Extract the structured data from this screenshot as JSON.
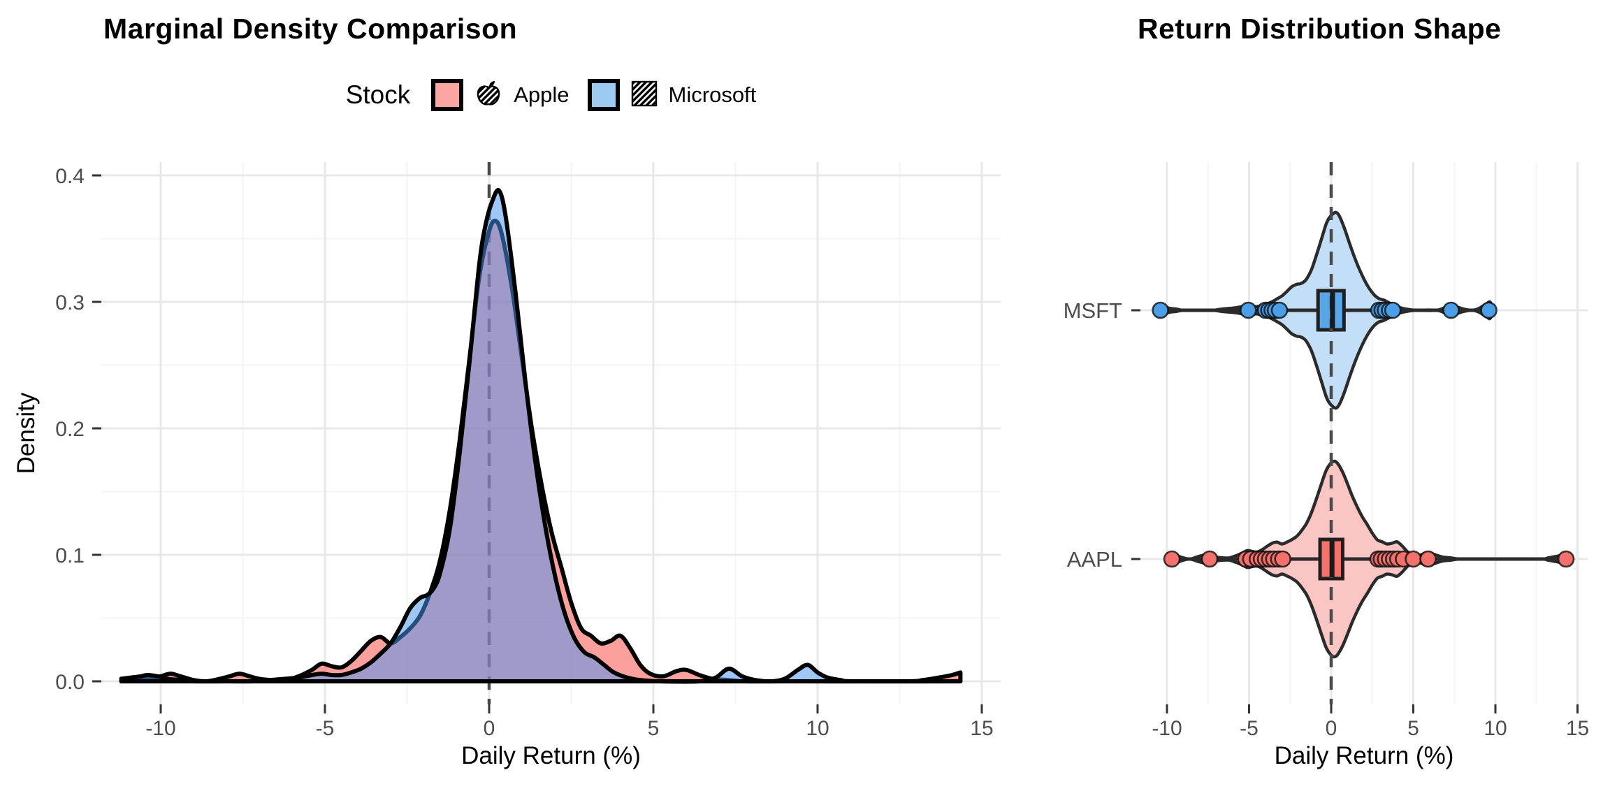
{
  "header": {
    "left_title": "Marginal Density Comparison",
    "right_title": "Return Distribution Shape"
  },
  "legend": {
    "title": "Stock",
    "items": [
      {
        "label": "Apple",
        "swatch": "#FCA5A2",
        "icon": "apple-icon"
      },
      {
        "label": "Microsoft",
        "swatch": "#9CCBF2",
        "icon": "striped-square-icon"
      }
    ]
  },
  "axes": {
    "left": {
      "xlabel": "Daily Return (%)",
      "ylabel": "Density"
    },
    "right": {
      "xlabel": "Daily Return (%)"
    }
  },
  "colors": {
    "grid_major": "#E8E8E8",
    "grid_minor": "#F4F4F4",
    "tick_text": "#4D4D4D",
    "tick_mark": "#333333",
    "dash_line": "#4A4A4A",
    "density_outline": "#000000"
  },
  "chart_data": [
    {
      "type": "area",
      "variant": "overlaid-density",
      "title": "Marginal Density Comparison",
      "xlabel": "Daily Return (%)",
      "ylabel": "Density",
      "xlim": [
        -11.8,
        15.55
      ],
      "ylim": [
        0,
        0.41
      ],
      "x_ticks": [
        -10,
        -5,
        0,
        5,
        10,
        15
      ],
      "x_minor": [
        -7.5,
        -2.5,
        2.5,
        7.5,
        12.5
      ],
      "y_ticks": [
        0.0,
        0.1,
        0.2,
        0.3,
        0.4
      ],
      "y_minor": [
        0.05,
        0.15,
        0.25,
        0.35
      ],
      "zero_vline": 0,
      "legend_position": "top",
      "series": [
        {
          "name": "Apple",
          "ticker": "AAPL",
          "fill": "rgba(250,82,78,0.55)",
          "points": [
            [
              -11.2,
              0.0
            ],
            [
              -10.8,
              0.001
            ],
            [
              -10.4,
              0.002
            ],
            [
              -10.0,
              0.004
            ],
            [
              -9.7,
              0.006
            ],
            [
              -9.4,
              0.004
            ],
            [
              -9.0,
              0.001
            ],
            [
              -8.6,
              0.0
            ],
            [
              -8.2,
              0.002
            ],
            [
              -7.9,
              0.004
            ],
            [
              -7.6,
              0.006
            ],
            [
              -7.3,
              0.004
            ],
            [
              -7.0,
              0.002
            ],
            [
              -6.6,
              0.001
            ],
            [
              -6.2,
              0.001
            ],
            [
              -5.8,
              0.004
            ],
            [
              -5.4,
              0.009
            ],
            [
              -5.1,
              0.014
            ],
            [
              -4.8,
              0.012
            ],
            [
              -4.5,
              0.011
            ],
            [
              -4.2,
              0.016
            ],
            [
              -3.9,
              0.024
            ],
            [
              -3.6,
              0.032
            ],
            [
              -3.3,
              0.035
            ],
            [
              -3.0,
              0.03
            ],
            [
              -2.7,
              0.035
            ],
            [
              -2.4,
              0.042
            ],
            [
              -2.1,
              0.052
            ],
            [
              -1.8,
              0.07
            ],
            [
              -1.5,
              0.095
            ],
            [
              -1.2,
              0.135
            ],
            [
              -0.9,
              0.19
            ],
            [
              -0.6,
              0.255
            ],
            [
              -0.3,
              0.32
            ],
            [
              0.0,
              0.356
            ],
            [
              0.2,
              0.364
            ],
            [
              0.4,
              0.352
            ],
            [
              0.7,
              0.31
            ],
            [
              1.0,
              0.255
            ],
            [
              1.3,
              0.2
            ],
            [
              1.6,
              0.155
            ],
            [
              1.9,
              0.118
            ],
            [
              2.2,
              0.09
            ],
            [
              2.5,
              0.062
            ],
            [
              2.8,
              0.042
            ],
            [
              3.1,
              0.036
            ],
            [
              3.4,
              0.03
            ],
            [
              3.7,
              0.032
            ],
            [
              4.0,
              0.036
            ],
            [
              4.3,
              0.026
            ],
            [
              4.6,
              0.013
            ],
            [
              4.9,
              0.006
            ],
            [
              5.3,
              0.004
            ],
            [
              5.7,
              0.008
            ],
            [
              6.0,
              0.009
            ],
            [
              6.4,
              0.005
            ],
            [
              6.8,
              0.002
            ],
            [
              7.3,
              0.001
            ],
            [
              7.8,
              0.0
            ],
            [
              9.0,
              0.0
            ],
            [
              12.6,
              0.0
            ],
            [
              13.2,
              0.001
            ],
            [
              13.7,
              0.003
            ],
            [
              14.1,
              0.005
            ],
            [
              14.35,
              0.007
            ]
          ]
        },
        {
          "name": "Microsoft",
          "ticker": "MSFT",
          "fill": "rgba(72,150,238,0.52)",
          "points": [
            [
              -11.2,
              0.002
            ],
            [
              -10.9,
              0.003
            ],
            [
              -10.6,
              0.004
            ],
            [
              -10.4,
              0.005
            ],
            [
              -10.1,
              0.004
            ],
            [
              -9.8,
              0.002
            ],
            [
              -9.4,
              0.001
            ],
            [
              -9.0,
              0.0
            ],
            [
              -8.0,
              0.0
            ],
            [
              -7.2,
              0.0
            ],
            [
              -6.7,
              0.001
            ],
            [
              -6.2,
              0.002
            ],
            [
              -5.8,
              0.003
            ],
            [
              -5.4,
              0.005
            ],
            [
              -5.1,
              0.006
            ],
            [
              -4.8,
              0.005
            ],
            [
              -4.5,
              0.005
            ],
            [
              -4.2,
              0.007
            ],
            [
              -3.9,
              0.01
            ],
            [
              -3.6,
              0.015
            ],
            [
              -3.3,
              0.022
            ],
            [
              -3.0,
              0.03
            ],
            [
              -2.7,
              0.043
            ],
            [
              -2.4,
              0.058
            ],
            [
              -2.1,
              0.066
            ],
            [
              -1.9,
              0.068
            ],
            [
              -1.7,
              0.073
            ],
            [
              -1.5,
              0.085
            ],
            [
              -1.2,
              0.12
            ],
            [
              -0.9,
              0.18
            ],
            [
              -0.6,
              0.252
            ],
            [
              -0.3,
              0.33
            ],
            [
              -0.1,
              0.362
            ],
            [
              0.1,
              0.38
            ],
            [
              0.3,
              0.388
            ],
            [
              0.5,
              0.368
            ],
            [
              0.8,
              0.308
            ],
            [
              1.1,
              0.238
            ],
            [
              1.4,
              0.175
            ],
            [
              1.7,
              0.124
            ],
            [
              2.0,
              0.084
            ],
            [
              2.3,
              0.054
            ],
            [
              2.6,
              0.034
            ],
            [
              2.9,
              0.023
            ],
            [
              3.2,
              0.019
            ],
            [
              3.5,
              0.013
            ],
            [
              3.8,
              0.007
            ],
            [
              4.2,
              0.003
            ],
            [
              4.6,
              0.001
            ],
            [
              5.2,
              0.0
            ],
            [
              6.4,
              0.0
            ],
            [
              6.9,
              0.003
            ],
            [
              7.3,
              0.01
            ],
            [
              7.7,
              0.004
            ],
            [
              8.1,
              0.001
            ],
            [
              8.6,
              0.0
            ],
            [
              9.0,
              0.002
            ],
            [
              9.4,
              0.009
            ],
            [
              9.7,
              0.013
            ],
            [
              10.0,
              0.007
            ],
            [
              10.3,
              0.003
            ],
            [
              10.7,
              0.001
            ],
            [
              11.2,
              0.0
            ],
            [
              14.35,
              0.0
            ]
          ]
        }
      ]
    },
    {
      "type": "violin",
      "variant": "horizontal-violin-box-jitter",
      "title": "Return Distribution Shape",
      "xlabel": "Daily Return (%)",
      "xlim": [
        -11.6,
        15.6
      ],
      "x_ticks": [
        -10,
        -5,
        0,
        5,
        10,
        15
      ],
      "x_minor": [
        -7.5,
        -2.5,
        2.5,
        7.5,
        12.5
      ],
      "zero_vline": 0,
      "rows": [
        {
          "label": "MSFT",
          "series_ref": "Microsoft",
          "violin_fill": "#C3DFF7",
          "box_fill": "#58A5E8",
          "point_fill": "#4B9EE8",
          "outline": "#2B2B2B",
          "box": {
            "q1": -0.8,
            "median": 0.08,
            "q3": 0.78
          },
          "range": [
            -10.4,
            9.6
          ],
          "outlier_points": [
            -10.4,
            -5.05,
            -4.0,
            -3.8,
            -3.6,
            -3.4,
            -3.15,
            2.9,
            3.1,
            3.3,
            3.55,
            3.75,
            7.3,
            9.6
          ]
        },
        {
          "label": "AAPL",
          "series_ref": "Apple",
          "violin_fill": "#FAC6C4",
          "box_fill": "#F4716C",
          "point_fill": "#F2716C",
          "outline": "#2B2B2B",
          "box": {
            "q1": -0.68,
            "median": 0.05,
            "q3": 0.7
          },
          "range": [
            -9.7,
            14.3
          ],
          "outlier_points": [
            -9.7,
            -7.4,
            -5.2,
            -4.9,
            -4.5,
            -4.25,
            -4.0,
            -3.75,
            -3.5,
            -3.2,
            -2.95,
            2.85,
            3.05,
            3.3,
            3.55,
            3.8,
            4.05,
            4.4,
            5.0,
            5.9,
            14.3
          ]
        }
      ]
    }
  ]
}
